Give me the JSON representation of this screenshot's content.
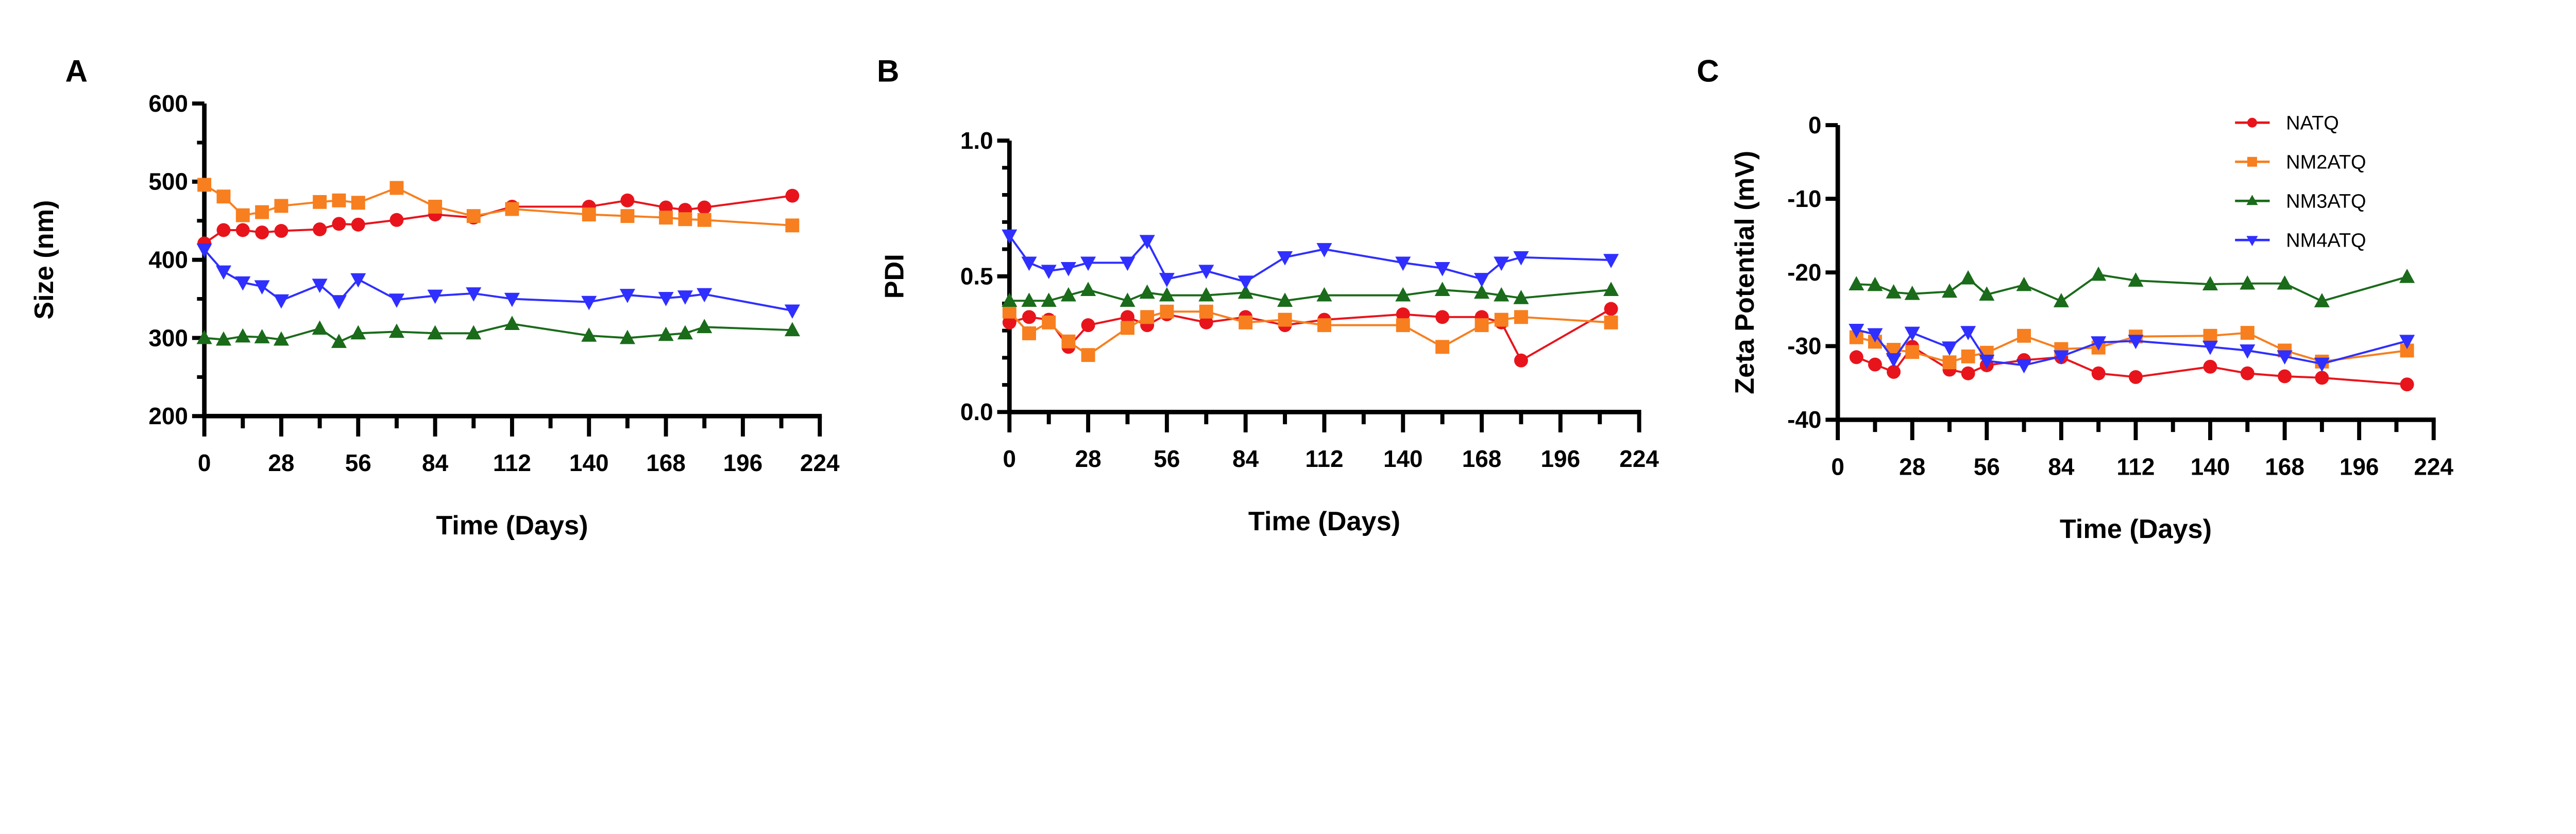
{
  "colors": {
    "NATQ": "#e8141c",
    "NM2ATQ": "#f77f1f",
    "NM3ATQ": "#1a6b1a",
    "NM4ATQ": "#2f2fff"
  },
  "legend": [
    "NATQ",
    "NM2ATQ",
    "NM3ATQ",
    "NM4ATQ"
  ],
  "chart_data": [
    {
      "panel": "A",
      "type": "line",
      "xlabel": "Time (Days)",
      "ylabel": "Size (nm)",
      "xlim": [
        0,
        224
      ],
      "ylim": [
        200,
        600
      ],
      "xticks": [
        0,
        28,
        56,
        84,
        112,
        140,
        168,
        196,
        224
      ],
      "yticks": [
        200,
        300,
        400,
        500,
        600
      ],
      "x": [
        0,
        7,
        14,
        21,
        28,
        42,
        49,
        56,
        70,
        84,
        98,
        112,
        140,
        154,
        168,
        175,
        182,
        214
      ],
      "series": [
        {
          "name": "NATQ",
          "marker": "circle",
          "values": [
            421,
            438,
            438,
            435,
            437,
            439,
            446,
            445,
            451,
            458,
            454,
            468,
            468,
            476,
            467,
            464,
            467,
            482
          ]
        },
        {
          "name": "NM2ATQ",
          "marker": "square",
          "values": [
            496,
            481,
            457,
            461,
            469,
            474,
            476,
            473,
            492,
            468,
            456,
            465,
            458,
            456,
            454,
            452,
            451,
            444
          ]
        },
        {
          "name": "NM3ATQ",
          "marker": "triangle-up",
          "values": [
            300,
            298,
            302,
            301,
            298,
            312,
            295,
            306,
            308,
            306,
            306,
            318,
            303,
            300,
            304,
            306,
            314,
            310
          ]
        },
        {
          "name": "NM4ATQ",
          "marker": "triangle-down",
          "values": [
            413,
            385,
            371,
            366,
            348,
            368,
            347,
            375,
            349,
            354,
            357,
            350,
            346,
            355,
            351,
            353,
            356,
            335
          ]
        }
      ]
    },
    {
      "panel": "B",
      "type": "line",
      "xlabel": "Time (Days)",
      "ylabel": "PDI",
      "xlim": [
        0,
        224
      ],
      "ylim": [
        0,
        1
      ],
      "xticks": [
        0,
        28,
        56,
        84,
        112,
        140,
        168,
        196,
        224
      ],
      "yticks": [
        "0.0",
        "0.5",
        "1.0"
      ],
      "x": [
        0,
        7,
        14,
        21,
        28,
        42,
        49,
        56,
        70,
        84,
        98,
        112,
        140,
        154,
        168,
        175,
        182,
        214
      ],
      "series": [
        {
          "name": "NATQ",
          "marker": "circle",
          "values": [
            0.33,
            0.35,
            0.34,
            0.24,
            0.32,
            0.35,
            0.32,
            0.36,
            0.33,
            0.35,
            0.32,
            0.34,
            0.36,
            0.35,
            0.35,
            0.33,
            0.19,
            0.38
          ]
        },
        {
          "name": "NM2ATQ",
          "marker": "square",
          "values": [
            0.37,
            0.29,
            0.33,
            0.26,
            0.21,
            0.31,
            0.35,
            0.37,
            0.37,
            0.33,
            0.34,
            0.32,
            0.32,
            0.24,
            0.32,
            0.34,
            0.35,
            0.33
          ]
        },
        {
          "name": "NM3ATQ",
          "marker": "triangle-up",
          "values": [
            0.41,
            0.41,
            0.41,
            0.43,
            0.45,
            0.41,
            0.44,
            0.43,
            0.43,
            0.44,
            0.41,
            0.43,
            0.43,
            0.45,
            0.44,
            0.43,
            0.42,
            0.45
          ]
        },
        {
          "name": "NM4ATQ",
          "marker": "triangle-down",
          "values": [
            0.65,
            0.55,
            0.52,
            0.53,
            0.55,
            0.55,
            0.63,
            0.49,
            0.52,
            0.48,
            0.57,
            0.6,
            0.55,
            0.53,
            0.49,
            0.55,
            0.57,
            0.56
          ]
        }
      ]
    },
    {
      "panel": "C",
      "type": "line",
      "xlabel": "Time (Days)",
      "ylabel": "Zeta Potential (mV)",
      "xlim": [
        0,
        224
      ],
      "ylim": [
        -40,
        0
      ],
      "xticks": [
        0,
        28,
        56,
        84,
        112,
        140,
        168,
        196,
        224
      ],
      "yticks": [
        -40,
        -30,
        -20,
        -10,
        0
      ],
      "legend_position": "top-right",
      "x": [
        7,
        14,
        21,
        28,
        42,
        49,
        56,
        70,
        84,
        98,
        112,
        140,
        154,
        168,
        182,
        214
      ],
      "series": [
        {
          "name": "NATQ",
          "marker": "circle",
          "values": [
            -31.5,
            -32.5,
            -33.5,
            -30.1,
            -33.2,
            -33.7,
            -32.6,
            -31.9,
            -31.5,
            -33.7,
            -34.2,
            -32.8,
            -33.7,
            -34.1,
            -34.3,
            -35.2
          ]
        },
        {
          "name": "NM2ATQ",
          "marker": "square",
          "values": [
            -28.8,
            -29.4,
            -30.5,
            -30.8,
            -32.2,
            -31.4,
            -30.9,
            -28.6,
            -30.4,
            -30.2,
            -28.7,
            -28.6,
            -28.2,
            -30.6,
            -32.1,
            -30.6
          ]
        },
        {
          "name": "NM3ATQ",
          "marker": "triangle-up",
          "values": [
            -21.6,
            -21.7,
            -22.7,
            -22.9,
            -22.6,
            -20.8,
            -23.0,
            -21.7,
            -23.9,
            -20.3,
            -21.1,
            -21.6,
            -21.5,
            -21.5,
            -23.9,
            -20.6
          ]
        },
        {
          "name": "NM4ATQ",
          "marker": "triangle-down",
          "values": [
            -27.8,
            -28.4,
            -31.8,
            -28.2,
            -30.2,
            -28.1,
            -32.0,
            -32.6,
            -31.4,
            -29.5,
            -29.3,
            -30.1,
            -30.6,
            -31.4,
            -32.4,
            -29.3
          ]
        }
      ]
    }
  ]
}
